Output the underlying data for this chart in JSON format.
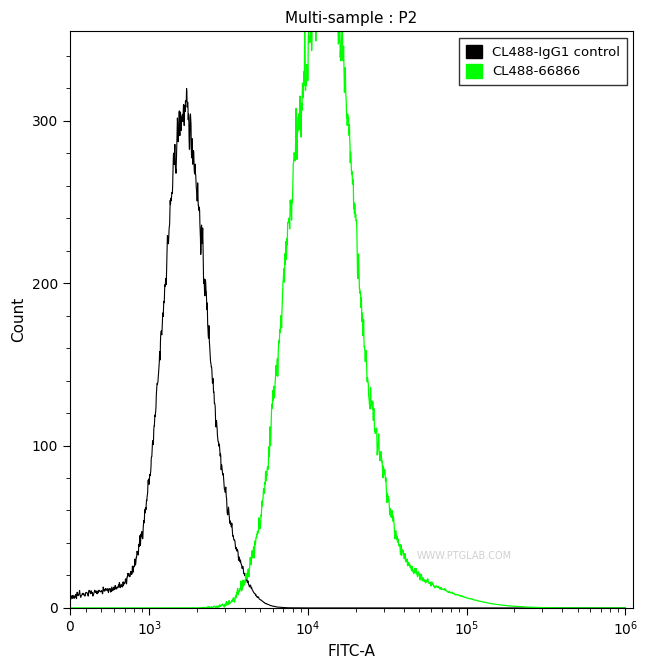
{
  "title": "Multi-sample : P2",
  "xlabel": "FITC-A",
  "ylabel": "Count",
  "xlim_log": [
    2.5,
    6.05
  ],
  "ylim": [
    0,
    355
  ],
  "yticks": [
    0,
    100,
    200,
    300
  ],
  "bg_color": "#ffffff",
  "line1_color": "#000000",
  "line2_color": "#00ff00",
  "line1_label": "CL488-IgG1 control",
  "line2_label": "CL488-66866",
  "watermark": "WWW.PTGLAB.COM",
  "black_peak_log": 3.22,
  "black_peak_count": 300,
  "black_sigma_log": 0.13,
  "green_peak_log": 4.02,
  "green_peak_count": 330,
  "green_sigma_log": 0.17
}
